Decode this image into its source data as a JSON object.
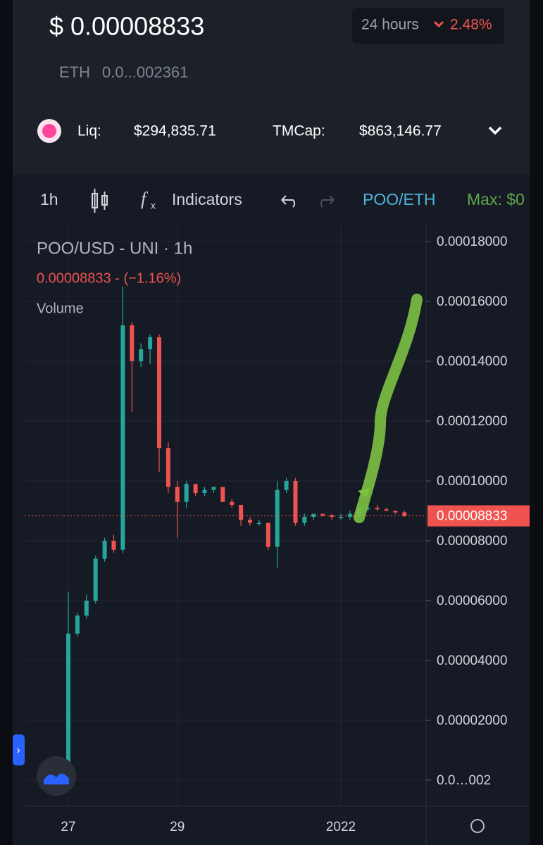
{
  "header": {
    "price": "$ 0.00008833",
    "period": "24 hours",
    "change": "2.48%",
    "eth_label": "ETH",
    "eth_value": "0.0...002361",
    "liq_label": "Liq:",
    "liq": "$294,835.71",
    "tmcap_label": "TMCap:",
    "tmcap": "$863,146.77"
  },
  "toolbar": {
    "interval": "1h",
    "indicators": "Indicators",
    "pair": "POO/ETH",
    "max": "Max: $0"
  },
  "chart_data": {
    "type": "candlestick",
    "title": "POO/USD - UNI · 1h",
    "subtitle": "0.00008833 - (−1.16%)",
    "volume_label": "Volume",
    "up_color": "#26a69a",
    "down_color": "#ef5350",
    "grid": true,
    "categories": [
      "27",
      null,
      null,
      null,
      null,
      null,
      null,
      null,
      null,
      null,
      null,
      null,
      "29",
      null,
      null,
      null,
      null,
      null,
      null,
      null,
      null,
      null,
      null,
      null,
      null,
      null,
      null,
      null,
      null,
      null,
      "2022",
      null,
      null,
      null,
      null,
      null,
      null,
      null
    ],
    "open": [
      4e-07,
      4.9e-05,
      5.5e-05,
      6e-05,
      7.4e-05,
      8e-05,
      7.7e-05,
      0.000152,
      0.00014,
      0.000144,
      0.000148,
      0.000111,
      9.8e-05,
      9.3e-05,
      9.9e-05,
      9.6e-05,
      9.7e-05,
      9.8e-05,
      9.3e-05,
      9.2e-05,
      8.7e-05,
      8.6e-05,
      8.6e-05,
      7.8e-05,
      9.7e-05,
      0.0001,
      8.6e-05,
      8.8e-05,
      8.9e-05,
      8.85e-05,
      8.8e-05,
      8.8e-05,
      8.9e-05,
      9.1e-05,
      9.1e-05,
      9.05e-05,
      9e-05,
      8.95e-05
    ],
    "high": [
      6.3e-05,
      5.6e-05,
      6.2e-05,
      7.5e-05,
      8.1e-05,
      8.2e-05,
      0.000165,
      0.000153,
      0.000146,
      0.000149,
      0.000149,
      0.000113,
      0.0001,
      0.0001,
      9.9e-05,
      9.8e-05,
      9.8e-05,
      9.8e-05,
      9.4e-05,
      9.2e-05,
      8.8e-05,
      8.7e-05,
      8.6e-05,
      0.0001,
      0.000101,
      0.000101,
      8.9e-05,
      8.9e-05,
      8.9e-05,
      8.9e-05,
      8.9e-05,
      9e-05,
      9.3e-05,
      9.2e-05,
      9.2e-05,
      9.1e-05,
      9e-05,
      9e-05
    ],
    "low": [
      2e-07,
      4.8e-05,
      5.4e-05,
      5.9e-05,
      7.3e-05,
      7.6e-05,
      7.6e-05,
      0.000123,
      0.000138,
      0.000139,
      0.000103,
      9.6e-05,
      8.1e-05,
      9.1e-05,
      9.5e-05,
      9.5e-05,
      9.6e-05,
      9.3e-05,
      9.1e-05,
      8.5e-05,
      8.5e-05,
      8.5e-05,
      7.7e-05,
      7.1e-05,
      9.6e-05,
      8.5e-05,
      8.5e-05,
      8.7e-05,
      8.8e-05,
      8.7e-05,
      8.7e-05,
      8.7e-05,
      8.8e-05,
      9e-05,
      9e-05,
      9e-05,
      8.9e-05,
      8.8e-05
    ],
    "close": [
      4.9e-05,
      5.5e-05,
      6e-05,
      7.4e-05,
      8e-05,
      7.7e-05,
      0.000152,
      0.00014,
      0.000144,
      0.000148,
      0.000111,
      9.8e-05,
      9.3e-05,
      9.9e-05,
      9.6e-05,
      9.7e-05,
      9.8e-05,
      9.3e-05,
      9.2e-05,
      8.7e-05,
      8.6e-05,
      8.6e-05,
      7.8e-05,
      9.7e-05,
      0.0001,
      8.6e-05,
      8.8e-05,
      8.9e-05,
      8.85e-05,
      8.8e-05,
      8.8e-05,
      8.9e-05,
      9.1e-05,
      9.1e-05,
      9.05e-05,
      9e-05,
      8.95e-05,
      8.833e-05
    ],
    "last_price": 8.833e-05,
    "ylim": [
      -8.7e-06,
      0.0001854
    ],
    "yticks": [
      {
        "value": 2e-08,
        "label": "0.0…002"
      },
      {
        "value": 2e-05,
        "label": "0.00002000"
      },
      {
        "value": 4e-05,
        "label": "0.00004000"
      },
      {
        "value": 6e-05,
        "label": "0.00006000"
      },
      {
        "value": 8e-05,
        "label": "0.00008000"
      },
      {
        "value": 0.0001,
        "label": "0.00010000"
      },
      {
        "value": 0.00012,
        "label": "0.00012000"
      },
      {
        "value": 0.00014,
        "label": "0.00014000"
      },
      {
        "value": 0.00016,
        "label": "0.00016000"
      },
      {
        "value": 0.00018,
        "label": "0.00018000"
      }
    ]
  }
}
